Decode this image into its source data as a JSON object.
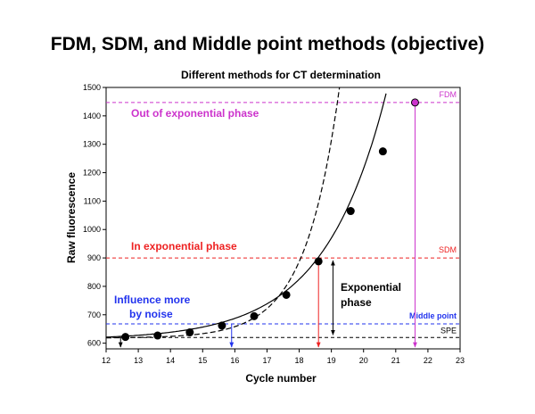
{
  "slide_title": "FDM, SDM, and Middle point methods (objective)",
  "chart_data": {
    "type": "scatter",
    "title": "Different methods for CT determination",
    "xlabel": "Cycle number",
    "ylabel": "Raw fluorescence",
    "xlim": [
      12,
      23
    ],
    "ylim": [
      580,
      1500
    ],
    "xticks": [
      12,
      13,
      14,
      15,
      16,
      17,
      18,
      19,
      20,
      21,
      22,
      23
    ],
    "yticks": [
      600,
      700,
      800,
      900,
      1000,
      1100,
      1200,
      1300,
      1400,
      1500
    ],
    "x": [
      12.6,
      13.6,
      14.6,
      15.6,
      16.6,
      17.6,
      18.6,
      19.6,
      20.6,
      21.6
    ],
    "y": [
      622,
      627,
      638,
      662,
      695,
      770,
      888,
      1065,
      1275,
      1447
    ],
    "reference_lines": [
      {
        "label": "FDM",
        "y": 1447,
        "color": "#cc33cc"
      },
      {
        "label": "SDM",
        "y": 900,
        "color": "#ee2222"
      },
      {
        "label": "Middle point",
        "y": 668,
        "color": "#2233ee"
      },
      {
        "label": "SPE",
        "y": 620,
        "color": "#000000"
      }
    ],
    "annotations": {
      "out": "Out of exponential phase",
      "in": "In exponential phase",
      "noise_line1": "Influence more",
      "noise_line2": "by noise",
      "exp_line1": "Exponential",
      "exp_line2": "phase"
    },
    "grid": false,
    "legend": "none"
  },
  "colors": {
    "fdm": "#cc33cc",
    "sdm": "#ee2222",
    "middle": "#2233ee",
    "spe": "#000000"
  }
}
